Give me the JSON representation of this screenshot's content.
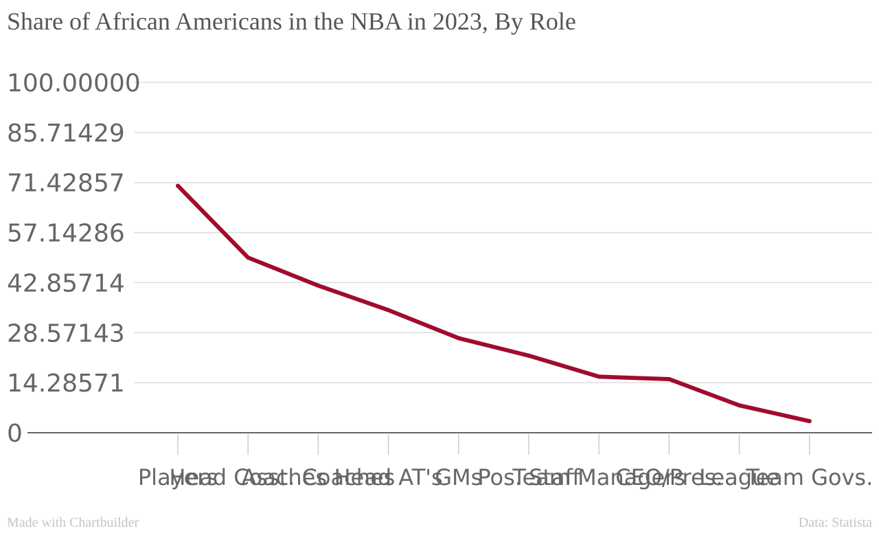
{
  "chart_data": {
    "type": "line",
    "title": "Share of African Americans in the NBA in 2023, By Role",
    "xlabel": "",
    "ylabel": "",
    "categories": [
      "Players",
      "Head Coaches",
      "Asst. Coaches",
      "Head AT's",
      "GMs",
      "Pos. Staff",
      "Team Managers",
      "CEO/Pres.",
      "League",
      "Team Govs."
    ],
    "values": [
      70.5,
      50.0,
      42.0,
      35.0,
      27.0,
      22.0,
      16.0,
      15.3,
      7.8,
      3.3
    ],
    "yticks": [
      "0",
      "14.28571",
      "28.57143",
      "42.85714",
      "57.14286",
      "71.42857",
      "85.71429",
      "100.00000"
    ],
    "ylim": [
      0,
      100
    ],
    "grid": true,
    "line_color": "#a00b2e"
  },
  "footer": {
    "made_with": "Made with Chartbuilder",
    "source": "Data: Statista"
  }
}
